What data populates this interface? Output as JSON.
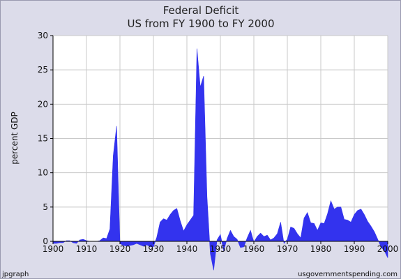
{
  "chart_data": {
    "type": "area",
    "title": "Federal Deficit",
    "subtitle": "US from FY 1900 to FY 2000",
    "xlabel": "",
    "ylabel": "percent GDP",
    "xlim": [
      1900,
      2000
    ],
    "ylim": [
      0,
      30
    ],
    "x_ticks": [
      "1900",
      "1910",
      "1920",
      "1930",
      "1940",
      "1950",
      "1960",
      "1970",
      "1980",
      "1990",
      "2000"
    ],
    "y_ticks": [
      "0",
      "5",
      "10",
      "15",
      "20",
      "25",
      "30"
    ],
    "grid": true,
    "fill_color": "#3333ee",
    "plot_background": "#ffffff",
    "series": [
      {
        "x": [
          1900,
          1901,
          1902,
          1903,
          1904,
          1905,
          1906,
          1907,
          1908,
          1909,
          1910,
          1911,
          1912,
          1913,
          1914,
          1915,
          1916,
          1917,
          1918,
          1919,
          1920,
          1921,
          1922,
          1923,
          1924,
          1925,
          1926,
          1927,
          1928,
          1929,
          1930,
          1931,
          1932,
          1933,
          1934,
          1935,
          1936,
          1937,
          1938,
          1939,
          1940,
          1941,
          1942,
          1943,
          1944,
          1945,
          1946,
          1947,
          1948,
          1949,
          1950,
          1951,
          1952,
          1953,
          1954,
          1955,
          1956,
          1957,
          1958,
          1959,
          1960,
          1961,
          1962,
          1963,
          1964,
          1965,
          1966,
          1967,
          1968,
          1969,
          1970,
          1971,
          1972,
          1973,
          1974,
          1975,
          1976,
          1977,
          1978,
          1979,
          1980,
          1981,
          1982,
          1983,
          1984,
          1985,
          1986,
          1987,
          1988,
          1989,
          1990,
          1991,
          1992,
          1993,
          1994,
          1995,
          1996,
          1997,
          1998,
          1999,
          2000
        ],
        "values": [
          -0.3,
          -0.3,
          -0.2,
          -0.2,
          0.1,
          0.1,
          -0.2,
          -0.3,
          0.2,
          0.3,
          0.1,
          0.0,
          0.0,
          0.0,
          0.1,
          0.5,
          0.4,
          1.8,
          12.5,
          16.8,
          -0.3,
          -0.6,
          -0.7,
          -0.6,
          -0.5,
          -0.3,
          -0.5,
          -0.7,
          -0.5,
          -0.8,
          -0.8,
          0.6,
          2.8,
          3.3,
          3.1,
          3.9,
          4.5,
          4.8,
          3.0,
          1.5,
          2.4,
          3.1,
          3.8,
          28.1,
          22.5,
          24.1,
          6.5,
          -1.8,
          -4.2,
          0.2,
          1.0,
          -1.4,
          0.4,
          1.6,
          0.7,
          0.3,
          -0.9,
          -0.8,
          0.5,
          1.6,
          -0.1,
          0.7,
          1.2,
          0.7,
          0.9,
          0.2,
          0.5,
          1.1,
          2.8,
          -0.3,
          0.3,
          2.1,
          1.9,
          1.1,
          0.5,
          3.4,
          4.2,
          2.7,
          2.6,
          1.6,
          2.7,
          2.6,
          4.0,
          5.9,
          4.7,
          5.0,
          5.0,
          3.2,
          3.1,
          2.8,
          3.9,
          4.5,
          4.7,
          3.9,
          2.9,
          2.2,
          1.4,
          0.3,
          -0.8,
          -1.4,
          -2.4
        ]
      }
    ]
  },
  "footer": {
    "left": "jpgraph",
    "right": "usgovernmentspending.com"
  }
}
